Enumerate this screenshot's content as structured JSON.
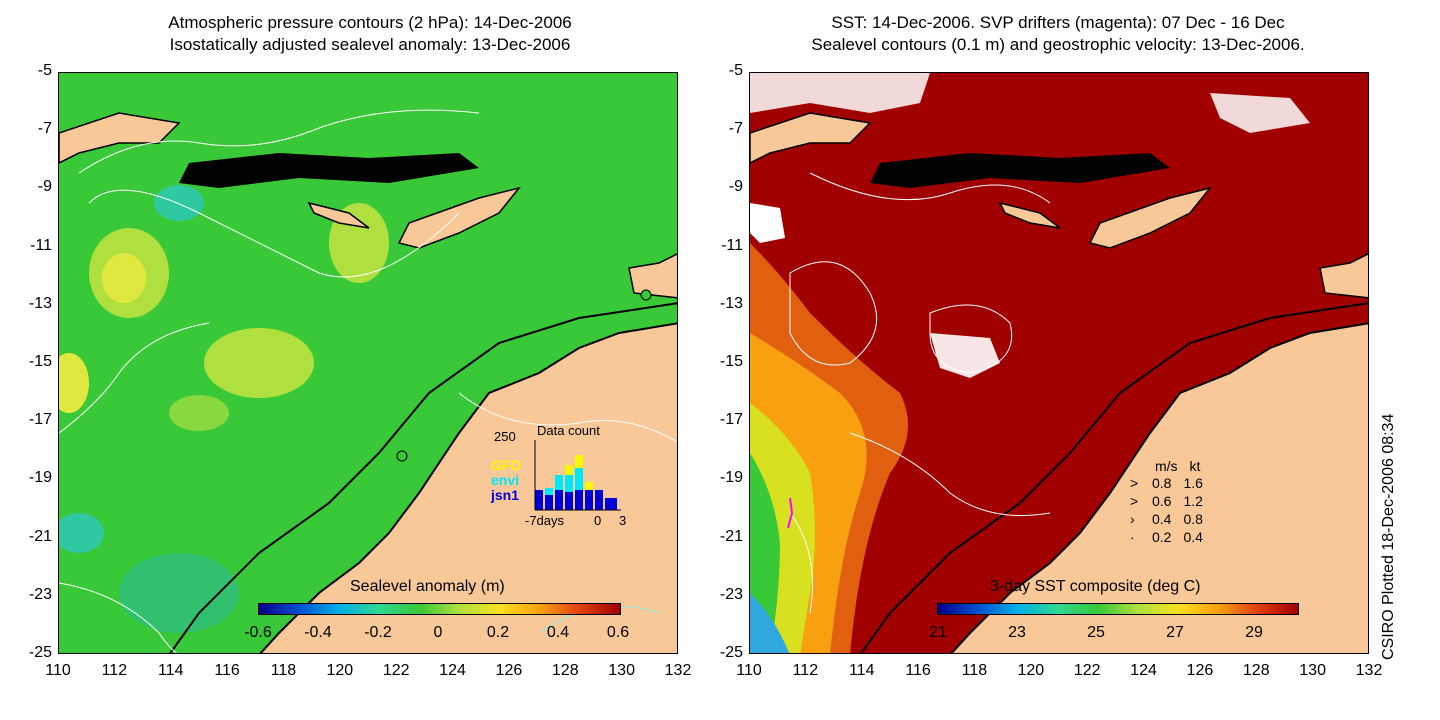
{
  "left": {
    "title_line1": "Atmospheric pressure contours (2 hPa): 14-Dec-2006",
    "title_line2": "Isostatically adjusted sealevel anomaly: 13-Dec-2006",
    "colorbar_title": "Sealevel anomaly (m)",
    "colorbar_ticks": [
      "-0.6",
      "-0.4",
      "-0.2",
      "0",
      "0.2",
      "0.4",
      "0.6"
    ],
    "inset": {
      "title": "Data count",
      "y_max_label": "250",
      "x_labels": [
        "-7days",
        "0",
        "3"
      ],
      "satellites": [
        {
          "name": "GFO",
          "color": "#f8f800"
        },
        {
          "name": "envi",
          "color": "#00e8f8"
        },
        {
          "name": "jsn1",
          "color": "#0000d8"
        }
      ]
    }
  },
  "right": {
    "title_line1": "SST: 14-Dec-2006. SVP drifters (magenta): 07 Dec - 16 Dec",
    "title_line2": "Sealevel contours (0.1 m) and geostrophic velocity: 13-Dec-2006.",
    "colorbar_title": "3-day SST composite (deg C)",
    "colorbar_ticks": [
      "21",
      "23",
      "25",
      "27",
      "29"
    ],
    "velocity_legend": {
      "header_ms": "m/s",
      "header_kt": "kt",
      "rows": [
        {
          "ms": "0.8",
          "kt": "1.6"
        },
        {
          "ms": "0.6",
          "kt": "1.2"
        },
        {
          "ms": "0.4",
          "kt": "0.8"
        },
        {
          "ms": "0.2",
          "kt": "0.4"
        }
      ]
    }
  },
  "axes": {
    "y_ticks": [
      "-5",
      "-7",
      "-9",
      "-11",
      "-13",
      "-15",
      "-17",
      "-19",
      "-21",
      "-23",
      "-25"
    ],
    "x_ticks": [
      "110",
      "112",
      "114",
      "116",
      "118",
      "120",
      "122",
      "124",
      "126",
      "128",
      "130",
      "132"
    ]
  },
  "credit": "CSIRO Plotted 18-Dec-2006 08:34",
  "colors": {
    "land": "#f8c898",
    "sst_warm": "#a00000",
    "sla_base": "#38c838"
  }
}
